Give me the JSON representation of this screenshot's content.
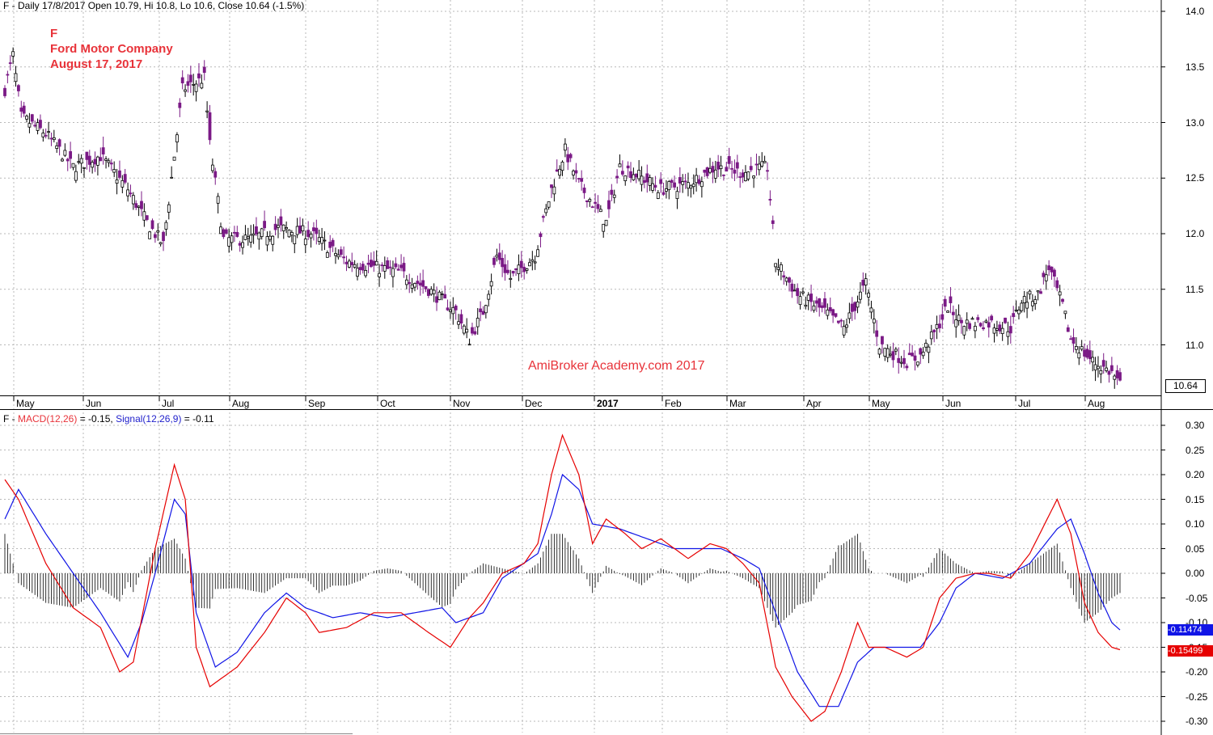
{
  "price_panel": {
    "header": "F - Daily 17/8/2017 Open 10.79, Hi 10.8, Lo 10.6, Close 10.64 (-1.5%)",
    "symbol": "F",
    "company": "Ford Motor Company",
    "date": "August 17, 2017",
    "watermark": "AmiBroker Academy.com  2017",
    "last_close_label": "10.64",
    "y_ticks": [
      "14.0",
      "13.5",
      "13.0",
      "12.5",
      "12.0",
      "11.5",
      "11.0"
    ],
    "x_ticks": [
      "May",
      "Jun",
      "Jul",
      "Aug",
      "Sep",
      "Oct",
      "Nov",
      "Dec",
      "2017",
      "Feb",
      "Mar",
      "Apr",
      "May",
      "Jun",
      "Jul",
      "Aug"
    ]
  },
  "macd_panel": {
    "prefix": "F - ",
    "macd_label": "MACD(12,26)",
    "macd_value": " = -0.15, ",
    "signal_label": "Signal(12,26,9)",
    "signal_value": " = -0.11",
    "last_macd_label": "-0.15499",
    "last_signal_label": "-0.11474",
    "y_ticks": [
      "0.30",
      "0.25",
      "0.20",
      "0.15",
      "0.10",
      "0.05",
      "0.00",
      "-0.05",
      "-0.10",
      "-0.15",
      "-0.20",
      "-0.25",
      "-0.30"
    ]
  },
  "colors": {
    "up_candle": "#000000",
    "down_candle": "#7b1a86",
    "macd_line": "#e60000",
    "signal_line": "#1014e6",
    "histogram": "#000000",
    "grid": "#b9b9b9",
    "title_text": "#e8333a"
  },
  "chart_data": {
    "type": "candlestick+macd",
    "grid": true,
    "price_ylim": [
      10.55,
      14.05
    ],
    "macd_ylim": [
      -0.31,
      0.31
    ],
    "price_keypoints": [
      [
        0,
        13.3
      ],
      [
        3,
        13.6
      ],
      [
        6,
        13.05
      ],
      [
        15,
        12.9
      ],
      [
        25,
        12.6
      ],
      [
        35,
        12.7
      ],
      [
        45,
        12.4
      ],
      [
        52,
        12.1
      ],
      [
        58,
        11.9
      ],
      [
        65,
        13.3
      ],
      [
        73,
        13.4
      ],
      [
        75,
        12.8
      ],
      [
        80,
        11.95
      ],
      [
        90,
        11.95
      ],
      [
        100,
        12.05
      ],
      [
        112,
        12.0
      ],
      [
        125,
        11.75
      ],
      [
        135,
        11.7
      ],
      [
        145,
        11.65
      ],
      [
        155,
        11.5
      ],
      [
        165,
        11.3
      ],
      [
        170,
        11.05
      ],
      [
        175,
        11.3
      ],
      [
        180,
        11.8
      ],
      [
        185,
        11.6
      ],
      [
        194,
        11.8
      ],
      [
        200,
        12.4
      ],
      [
        205,
        12.75
      ],
      [
        210,
        12.45
      ],
      [
        220,
        12.1
      ],
      [
        225,
        12.6
      ],
      [
        230,
        12.55
      ],
      [
        240,
        12.4
      ],
      [
        250,
        12.45
      ],
      [
        260,
        12.6
      ],
      [
        270,
        12.55
      ],
      [
        279,
        12.6
      ],
      [
        282,
        11.75
      ],
      [
        290,
        11.45
      ],
      [
        300,
        11.3
      ],
      [
        307,
        11.15
      ],
      [
        315,
        11.55
      ],
      [
        320,
        11.0
      ],
      [
        330,
        10.85
      ],
      [
        335,
        10.9
      ],
      [
        340,
        11.1
      ],
      [
        345,
        11.35
      ],
      [
        350,
        11.2
      ],
      [
        360,
        11.2
      ],
      [
        368,
        11.15
      ],
      [
        372,
        11.4
      ],
      [
        378,
        11.45
      ],
      [
        382,
        11.7
      ],
      [
        387,
        11.35
      ],
      [
        390,
        11.05
      ],
      [
        398,
        10.85
      ],
      [
        405,
        10.75
      ],
      [
        408,
        10.64
      ]
    ],
    "macd_keypoints": [
      [
        0,
        0.19
      ],
      [
        5,
        0.15
      ],
      [
        15,
        0.02
      ],
      [
        25,
        -0.07
      ],
      [
        35,
        -0.11
      ],
      [
        42,
        -0.2
      ],
      [
        47,
        -0.18
      ],
      [
        55,
        0.05
      ],
      [
        62,
        0.22
      ],
      [
        66,
        0.15
      ],
      [
        70,
        -0.15
      ],
      [
        75,
        -0.23
      ],
      [
        85,
        -0.19
      ],
      [
        95,
        -0.12
      ],
      [
        103,
        -0.05
      ],
      [
        110,
        -0.08
      ],
      [
        115,
        -0.12
      ],
      [
        125,
        -0.11
      ],
      [
        135,
        -0.08
      ],
      [
        145,
        -0.08
      ],
      [
        155,
        -0.12
      ],
      [
        163,
        -0.15
      ],
      [
        170,
        -0.09
      ],
      [
        175,
        -0.06
      ],
      [
        182,
        0.0
      ],
      [
        190,
        0.02
      ],
      [
        195,
        0.06
      ],
      [
        200,
        0.2
      ],
      [
        204,
        0.28
      ],
      [
        210,
        0.2
      ],
      [
        215,
        0.06
      ],
      [
        220,
        0.11
      ],
      [
        227,
        0.08
      ],
      [
        233,
        0.05
      ],
      [
        240,
        0.07
      ],
      [
        250,
        0.03
      ],
      [
        258,
        0.06
      ],
      [
        264,
        0.05
      ],
      [
        270,
        0.02
      ],
      [
        276,
        -0.02
      ],
      [
        282,
        -0.19
      ],
      [
        288,
        -0.25
      ],
      [
        295,
        -0.3
      ],
      [
        300,
        -0.28
      ],
      [
        306,
        -0.2
      ],
      [
        312,
        -0.1
      ],
      [
        316,
        -0.15
      ],
      [
        322,
        -0.15
      ],
      [
        330,
        -0.17
      ],
      [
        336,
        -0.15
      ],
      [
        342,
        -0.05
      ],
      [
        348,
        -0.01
      ],
      [
        355,
        0.0
      ],
      [
        360,
        0.0
      ],
      [
        368,
        -0.01
      ],
      [
        375,
        0.04
      ],
      [
        385,
        0.15
      ],
      [
        390,
        0.08
      ],
      [
        395,
        -0.06
      ],
      [
        400,
        -0.12
      ],
      [
        405,
        -0.15
      ],
      [
        408,
        -0.155
      ]
    ],
    "signal_keypoints": [
      [
        0,
        0.11
      ],
      [
        5,
        0.17
      ],
      [
        15,
        0.08
      ],
      [
        25,
        0.0
      ],
      [
        35,
        -0.08
      ],
      [
        45,
        -0.17
      ],
      [
        50,
        -0.1
      ],
      [
        55,
        0.0
      ],
      [
        62,
        0.15
      ],
      [
        66,
        0.12
      ],
      [
        70,
        -0.08
      ],
      [
        77,
        -0.19
      ],
      [
        85,
        -0.16
      ],
      [
        95,
        -0.08
      ],
      [
        103,
        -0.04
      ],
      [
        110,
        -0.07
      ],
      [
        120,
        -0.09
      ],
      [
        130,
        -0.08
      ],
      [
        140,
        -0.09
      ],
      [
        150,
        -0.08
      ],
      [
        160,
        -0.07
      ],
      [
        165,
        -0.1
      ],
      [
        175,
        -0.08
      ],
      [
        182,
        -0.01
      ],
      [
        195,
        0.04
      ],
      [
        200,
        0.12
      ],
      [
        204,
        0.2
      ],
      [
        210,
        0.17
      ],
      [
        215,
        0.1
      ],
      [
        225,
        0.09
      ],
      [
        235,
        0.07
      ],
      [
        245,
        0.05
      ],
      [
        255,
        0.05
      ],
      [
        262,
        0.05
      ],
      [
        270,
        0.03
      ],
      [
        276,
        0.01
      ],
      [
        282,
        -0.08
      ],
      [
        290,
        -0.2
      ],
      [
        298,
        -0.27
      ],
      [
        305,
        -0.27
      ],
      [
        312,
        -0.18
      ],
      [
        318,
        -0.15
      ],
      [
        325,
        -0.15
      ],
      [
        335,
        -0.15
      ],
      [
        342,
        -0.1
      ],
      [
        348,
        -0.03
      ],
      [
        355,
        0.0
      ],
      [
        365,
        -0.01
      ],
      [
        375,
        0.02
      ],
      [
        385,
        0.09
      ],
      [
        390,
        0.11
      ],
      [
        395,
        0.04
      ],
      [
        400,
        -0.04
      ],
      [
        405,
        -0.1
      ],
      [
        408,
        -0.115
      ]
    ]
  }
}
